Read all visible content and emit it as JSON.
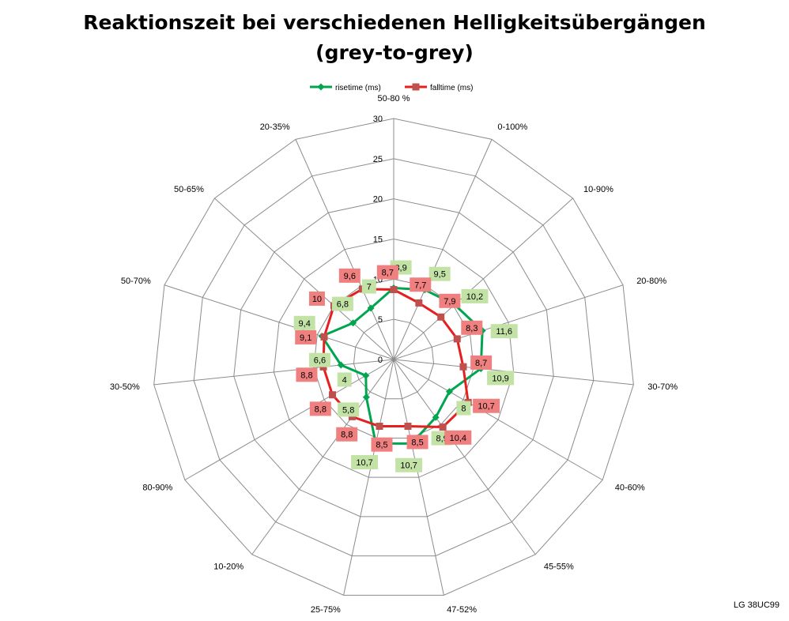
{
  "chart_data": {
    "type": "radar",
    "title_lines": [
      "Reaktionszeit bei verschiedenen Helligkeitsübergängen",
      "(grey-to-grey)"
    ],
    "categories": [
      "50-80 %",
      "0-100%",
      "10-90%",
      "20-80%",
      "30-70%",
      "40-60%",
      "45-55%",
      "47-52%",
      "25-75%",
      "10-20%",
      "80-90%",
      "30-50%",
      "50-70%",
      "50-65%",
      "20-35%"
    ],
    "r_ticks": [
      "0",
      "5",
      "10",
      "15",
      "20",
      "25",
      "30"
    ],
    "rlim": [
      0,
      30
    ],
    "grid": true,
    "legend_position": "top",
    "series": [
      {
        "name": "risetime (ms)",
        "color": "#00a550",
        "label_bg": "#c3e3a6",
        "values": [
          8.9,
          9.5,
          10.2,
          11.6,
          10.9,
          8,
          8.9,
          10.7,
          10.7,
          5.8,
          4,
          6.6,
          9.4,
          6.8,
          7
        ],
        "labels": [
          "8,9",
          "9,5",
          "10,2",
          "11,6",
          "10,9",
          "8",
          "8,9",
          "10,7",
          "10,7",
          "5,8",
          "4",
          "6,6",
          "9,4",
          "6,8",
          "7"
        ]
      },
      {
        "name": "falltime (ms)",
        "color": "#e61e1e",
        "label_bg": "#f08080",
        "values": [
          8.7,
          7.7,
          7.9,
          8.3,
          8.7,
          10.7,
          10.4,
          8.5,
          8.5,
          8.8,
          8.8,
          8.8,
          9.1,
          10,
          9.6
        ],
        "labels": [
          "8,7",
          "7,7",
          "7,9",
          "8,3",
          "8,7",
          "10,7",
          "10,4",
          "8,5",
          "8,5",
          "8,8",
          "8,8",
          "8,8",
          "9,1",
          "10",
          "9,6"
        ]
      }
    ]
  },
  "watermark": "LG 38UC99"
}
